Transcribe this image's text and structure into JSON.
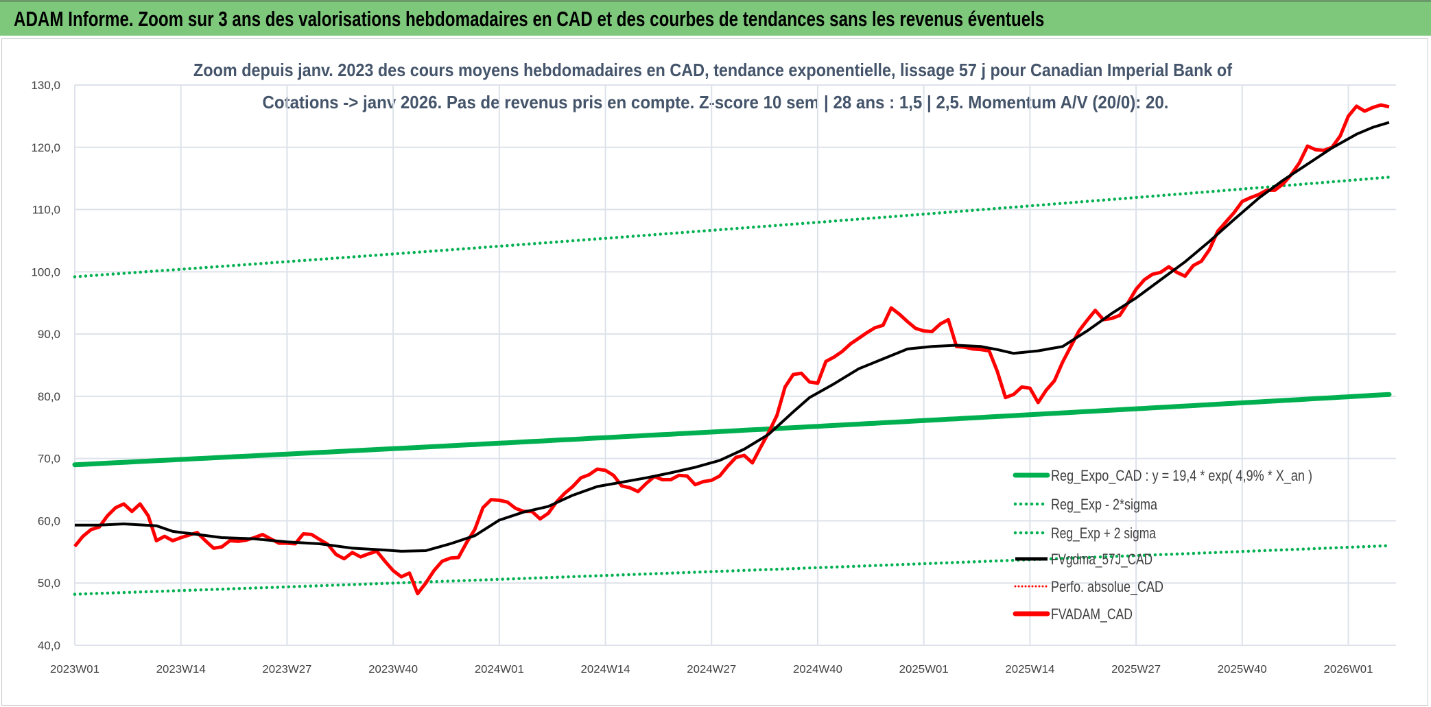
{
  "header": {
    "title": "ADAM Informe. Zoom sur 3 ans des valorisations hebdomadaires en CAD et des courbes de tendances sans les revenus éventuels"
  },
  "colors": {
    "trend": "#00B050",
    "band": "#00B050",
    "smooth": "#000000",
    "fvadam": "#FF0000",
    "perfo": "#FF0000",
    "header": "#7DC87B",
    "grid": "#DDE2EA",
    "subtitle": "#44546A"
  },
  "chart_data": {
    "type": "line",
    "title_line1": "Zoom depuis janv. 2023 des cours moyens hebdomadaires en CAD, tendance exponentielle, lissage 57 j pour Canadian Imperial Bank of",
    "title_line2": "Cotations -> janv 2026. Pas de revenus pris en compte. Z-score 10 sem | 28 ans : 1,5 | 2,5. Momentum A/V (20/0): 20.",
    "ylim": [
      40,
      130
    ],
    "yticks": [
      "40,0",
      "50,0",
      "60,0",
      "70,0",
      "80,0",
      "90,0",
      "100,0",
      "110,0",
      "120,0",
      "130,0"
    ],
    "ytick_values": [
      40,
      50,
      60,
      70,
      80,
      90,
      100,
      110,
      120,
      130
    ],
    "x_count_weeks": 162,
    "xticks": [
      {
        "week": 0,
        "label": "2023W01"
      },
      {
        "week": 13,
        "label": "2023W14"
      },
      {
        "week": 26,
        "label": "2023W27"
      },
      {
        "week": 39,
        "label": "2023W40"
      },
      {
        "week": 52,
        "label": "2024W01"
      },
      {
        "week": 65,
        "label": "2024W14"
      },
      {
        "week": 78,
        "label": "2024W27"
      },
      {
        "week": 91,
        "label": "2024W40"
      },
      {
        "week": 104,
        "label": "2025W01"
      },
      {
        "week": 117,
        "label": "2025W14"
      },
      {
        "week": 130,
        "label": "2025W27"
      },
      {
        "week": 143,
        "label": "2025W40"
      },
      {
        "week": 156,
        "label": "2026W01"
      }
    ],
    "grid": true,
    "legend_position": "bottom-right",
    "legend": [
      "Reg_Expo_CAD : y = 19,4 * exp( 4,9% *  X_an )",
      "Reg_Exp - 2*sigma",
      "Reg_Exp + 2 sigma",
      "FVgdma_57J_CAD",
      "Perfo. absolue_CAD",
      "FVADAM_CAD"
    ],
    "series": {
      "reg_expo": {
        "name": "Reg_Expo_CAD",
        "start": 69.0,
        "end": 80.3
      },
      "reg_minus": {
        "name": "Reg_Exp - 2*sigma",
        "start": 48.2,
        "end": 56.0
      },
      "reg_plus": {
        "name": "Reg_Exp + 2 sigma",
        "start": 99.2,
        "end": 115.2
      },
      "fvgdma": {
        "name": "FVgdma_57J_CAD",
        "points": [
          [
            0,
            59.3
          ],
          [
            3,
            59.3
          ],
          [
            6,
            59.5
          ],
          [
            10,
            59.2
          ],
          [
            12,
            58.3
          ],
          [
            15,
            57.8
          ],
          [
            18,
            57.3
          ],
          [
            22,
            57.1
          ],
          [
            26,
            56.6
          ],
          [
            30,
            56.3
          ],
          [
            34,
            55.6
          ],
          [
            38,
            55.3
          ],
          [
            40,
            55.1
          ],
          [
            43,
            55.2
          ],
          [
            46,
            56.3
          ],
          [
            49,
            57.6
          ],
          [
            52,
            60.1
          ],
          [
            55,
            61.4
          ],
          [
            58,
            62.3
          ],
          [
            61,
            64.1
          ],
          [
            64,
            65.5
          ],
          [
            67,
            66.2
          ],
          [
            70,
            66.9
          ],
          [
            73,
            67.7
          ],
          [
            76,
            68.6
          ],
          [
            79,
            69.7
          ],
          [
            82,
            71.5
          ],
          [
            85,
            73.9
          ],
          [
            88,
            77.5
          ],
          [
            90,
            79.8
          ],
          [
            93,
            82.0
          ],
          [
            96,
            84.4
          ],
          [
            99,
            86.0
          ],
          [
            102,
            87.6
          ],
          [
            105,
            88.0
          ],
          [
            108,
            88.2
          ],
          [
            111,
            88.0
          ],
          [
            113,
            87.5
          ],
          [
            115,
            86.9
          ],
          [
            118,
            87.3
          ],
          [
            121,
            88.0
          ],
          [
            124,
            90.5
          ],
          [
            127,
            93.3
          ],
          [
            130,
            95.8
          ],
          [
            133,
            98.7
          ],
          [
            136,
            101.6
          ],
          [
            139,
            104.9
          ],
          [
            142,
            108.4
          ],
          [
            145,
            111.8
          ],
          [
            148,
            114.7
          ],
          [
            151,
            117.3
          ],
          [
            154,
            119.9
          ],
          [
            157,
            122.1
          ],
          [
            159,
            123.2
          ],
          [
            161,
            124.0
          ]
        ]
      },
      "fvadam": {
        "name": "FVADAM_CAD",
        "points": [
          [
            0,
            55.9
          ],
          [
            1,
            57.5
          ],
          [
            2,
            58.6
          ],
          [
            3,
            59
          ],
          [
            4,
            60.8
          ],
          [
            5,
            62.1
          ],
          [
            6,
            62.7
          ],
          [
            7,
            61.5
          ],
          [
            8,
            62.7
          ],
          [
            9,
            60.8
          ],
          [
            10,
            56.8
          ],
          [
            11,
            57.5
          ],
          [
            12,
            56.8
          ],
          [
            13,
            57.3
          ],
          [
            14,
            57.7
          ],
          [
            15,
            58.1
          ],
          [
            16,
            56.8
          ],
          [
            17,
            55.6
          ],
          [
            18,
            55.8
          ],
          [
            19,
            56.8
          ],
          [
            20,
            56.7
          ],
          [
            21,
            56.9
          ],
          [
            22,
            57.3
          ],
          [
            23,
            57.8
          ],
          [
            24,
            57.1
          ],
          [
            25,
            56.4
          ],
          [
            26,
            56.4
          ],
          [
            27,
            56.3
          ],
          [
            28,
            57.9
          ],
          [
            29,
            57.8
          ],
          [
            30,
            57
          ],
          [
            31,
            56.2
          ],
          [
            32,
            54.6
          ],
          [
            33,
            53.9
          ],
          [
            34,
            54.9
          ],
          [
            35,
            54.2
          ],
          [
            36,
            54.7
          ],
          [
            37,
            55.1
          ],
          [
            38,
            53.5
          ],
          [
            39,
            52
          ],
          [
            40,
            51
          ],
          [
            41,
            51.6
          ],
          [
            42,
            48.3
          ],
          [
            43,
            50
          ],
          [
            44,
            52
          ],
          [
            45,
            53.5
          ],
          [
            46,
            54
          ],
          [
            47,
            54.1
          ],
          [
            48,
            56.5
          ],
          [
            49,
            58.6
          ],
          [
            50,
            62.1
          ],
          [
            51,
            63.4
          ],
          [
            52,
            63.3
          ],
          [
            53,
            63
          ],
          [
            54,
            62
          ],
          [
            55,
            61.5
          ],
          [
            56,
            61.5
          ],
          [
            57,
            60.3
          ],
          [
            58,
            61.2
          ],
          [
            59,
            63
          ],
          [
            60,
            64.4
          ],
          [
            61,
            65.5
          ],
          [
            62,
            66.9
          ],
          [
            63,
            67.4
          ],
          [
            64,
            68.3
          ],
          [
            65,
            68.1
          ],
          [
            66,
            67.3
          ],
          [
            67,
            65.6
          ],
          [
            68,
            65.3
          ],
          [
            69,
            64.7
          ],
          [
            70,
            66
          ],
          [
            71,
            67.1
          ],
          [
            72,
            66.6
          ],
          [
            73,
            66.6
          ],
          [
            74,
            67.3
          ],
          [
            75,
            67.2
          ],
          [
            76,
            65.8
          ],
          [
            77,
            66.3
          ],
          [
            78,
            66.5
          ],
          [
            79,
            67.2
          ],
          [
            80,
            68.8
          ],
          [
            81,
            70.2
          ],
          [
            82,
            70.5
          ],
          [
            83,
            69.3
          ],
          [
            84,
            71.8
          ],
          [
            85,
            74.2
          ],
          [
            86,
            76.9
          ],
          [
            87,
            81.5
          ],
          [
            88,
            83.5
          ],
          [
            89,
            83.7
          ],
          [
            90,
            82.3
          ],
          [
            91,
            82.1
          ],
          [
            92,
            85.6
          ],
          [
            93,
            86.3
          ],
          [
            94,
            87.2
          ],
          [
            95,
            88.4
          ],
          [
            96,
            89.3
          ],
          [
            97,
            90.2
          ],
          [
            98,
            91
          ],
          [
            99,
            91.4
          ],
          [
            100,
            94.2
          ],
          [
            101,
            93.2
          ],
          [
            102,
            92
          ],
          [
            103,
            90.9
          ],
          [
            104,
            90.5
          ],
          [
            105,
            90.4
          ],
          [
            106,
            91.6
          ],
          [
            107,
            92.3
          ],
          [
            108,
            88
          ],
          [
            109,
            87.9
          ],
          [
            110,
            87.6
          ],
          [
            111,
            87.5
          ],
          [
            112,
            87.3
          ],
          [
            113,
            84
          ],
          [
            114,
            79.8
          ],
          [
            115,
            80.3
          ],
          [
            116,
            81.5
          ],
          [
            117,
            81.3
          ],
          [
            118,
            79
          ],
          [
            119,
            81
          ],
          [
            120,
            82.5
          ],
          [
            121,
            85.5
          ],
          [
            122,
            88
          ],
          [
            123,
            90.5
          ],
          [
            124,
            92.2
          ],
          [
            125,
            93.8
          ],
          [
            126,
            92.3
          ],
          [
            127,
            92.5
          ],
          [
            128,
            93
          ],
          [
            129,
            95
          ],
          [
            130,
            97.2
          ],
          [
            131,
            98.7
          ],
          [
            132,
            99.6
          ],
          [
            133,
            99.9
          ],
          [
            134,
            100.8
          ],
          [
            135,
            99.9
          ],
          [
            136,
            99.3
          ],
          [
            137,
            101
          ],
          [
            138,
            101.7
          ],
          [
            139,
            103.6
          ],
          [
            140,
            106.5
          ],
          [
            141,
            108
          ],
          [
            142,
            109.5
          ],
          [
            143,
            111.3
          ],
          [
            144,
            111.9
          ],
          [
            145,
            112.4
          ],
          [
            146,
            113.1
          ],
          [
            147,
            113.1
          ],
          [
            148,
            114.1
          ],
          [
            149,
            115.6
          ],
          [
            150,
            117.5
          ],
          [
            151,
            120.2
          ],
          [
            152,
            119.6
          ],
          [
            153,
            119.5
          ],
          [
            154,
            120
          ],
          [
            155,
            121.8
          ],
          [
            156,
            125
          ],
          [
            157,
            126.6
          ],
          [
            158,
            125.8
          ],
          [
            159,
            126.4
          ],
          [
            160,
            126.8
          ],
          [
            161,
            126.5
          ]
        ]
      }
    }
  }
}
